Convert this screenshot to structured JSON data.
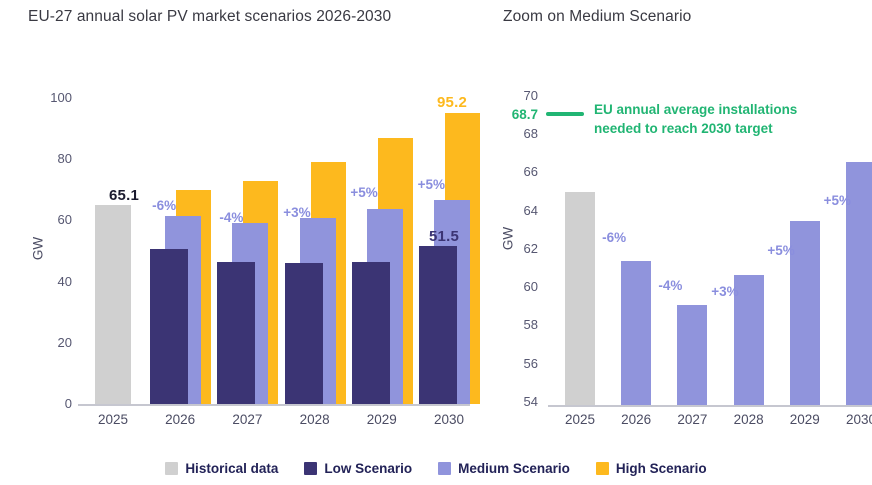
{
  "page": {
    "background": "#FFFFFF"
  },
  "legend": {
    "items": [
      {
        "label": "Historical data",
        "color": "#D0D0D0"
      },
      {
        "label": "Low Scenario",
        "color": "#3B3474"
      },
      {
        "label": "Medium Scenario",
        "color": "#9094DC"
      },
      {
        "label": "High Scenario",
        "color": "#FDB91E"
      }
    ]
  },
  "chart_data": [
    {
      "type": "bar",
      "title": "EU-27 annual solar PV market scenarios 2026-2030",
      "ylabel": "GW",
      "ylim": [
        0,
        100
      ],
      "yticks": [
        0,
        20,
        40,
        60,
        80,
        100
      ],
      "grid": false,
      "legend_position": "bottom",
      "categories": [
        "2025",
        "2026",
        "2027",
        "2028",
        "2029",
        "2030"
      ],
      "historical": {
        "category": "2025",
        "value": 65.1,
        "label": "65.1",
        "color": "#D0D0D0"
      },
      "series": [
        {
          "name": "Low Scenario",
          "color": "#3B3474",
          "values": [
            50.5,
            46.5,
            46.0,
            46.5,
            51.5
          ]
        },
        {
          "name": "Medium Scenario",
          "color": "#9094DC",
          "values": [
            61.5,
            59.2,
            60.8,
            63.6,
            66.7
          ]
        },
        {
          "name": "High Scenario",
          "color": "#FDB91E",
          "values": [
            70,
            73,
            79,
            87,
            95.2
          ]
        }
      ],
      "pct_labels": {
        "text": [
          "-6%",
          "-4%",
          "+3%",
          "+5%",
          "+5%"
        ],
        "color": "#8A8EDE",
        "applies_to": "Medium Scenario"
      },
      "value_labels": [
        {
          "text": "65.1",
          "on": "2025 Historical data",
          "color": "#1B1B2F"
        },
        {
          "text": "51.5",
          "on": "2030 Low Scenario",
          "color": "#3B3474"
        },
        {
          "text": "95.2",
          "on": "2030 High Scenario",
          "color": "#FDB91E"
        }
      ]
    },
    {
      "type": "bar",
      "title": "Zoom on Medium Scenario",
      "ylabel": "GW",
      "ylim": [
        54,
        70
      ],
      "yticks": [
        54,
        56,
        58,
        60,
        62,
        64,
        66,
        68,
        70
      ],
      "grid": false,
      "categories": [
        "2025",
        "2026",
        "2027",
        "2028",
        "2029",
        "2030"
      ],
      "historical": {
        "category": "2025",
        "value": 65.1,
        "color": "#D0D0D0"
      },
      "series": [
        {
          "name": "Medium Scenario",
          "color": "#9094DC",
          "values": [
            61.5,
            59.2,
            60.8,
            63.6,
            66.7
          ]
        }
      ],
      "pct_labels": {
        "text": [
          "-6%",
          "-4%",
          "+3%",
          "+5%",
          "+5%"
        ],
        "color": "#8A8EDE"
      },
      "target_line": {
        "value": 68.7,
        "label": "68.7",
        "text": "EU annual average installations needed to reach 2030 target",
        "color": "#21B573"
      }
    }
  ]
}
